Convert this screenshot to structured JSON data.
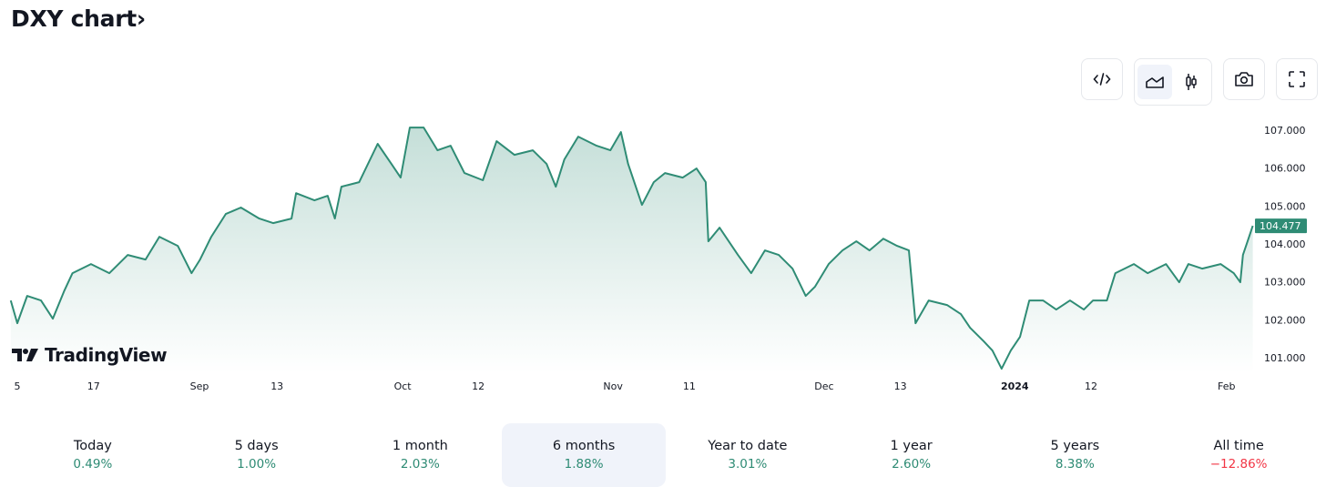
{
  "title": "DXY chart›",
  "toolbar": {
    "embed_icon": "code-icon",
    "area_icon": "area-chart-icon",
    "candles_icon": "candlestick-icon",
    "snapshot_icon": "camera-icon",
    "fullscreen_icon": "fullscreen-icon"
  },
  "logo": "TradingView",
  "colors": {
    "line": "#2f8c75",
    "up": "#2e8b74",
    "down": "#f23645",
    "badge": "#2f8c75"
  },
  "chart_data": {
    "type": "area",
    "title": "DXY",
    "xlabel": "",
    "ylabel": "",
    "ylim": [
      100.6,
      107.3
    ],
    "xlim": [
      -1,
      188
    ],
    "y_ticks": [
      "107.000",
      "106.000",
      "105.000",
      "104.000",
      "103.000",
      "102.000",
      "101.000"
    ],
    "y_tick_values": [
      107,
      106,
      105,
      104,
      103,
      102,
      101
    ],
    "x_ticks": [
      {
        "label": "5",
        "day": 0
      },
      {
        "label": "17",
        "day": 11.6
      },
      {
        "label": "Sep",
        "day": 27.7
      },
      {
        "label": "13",
        "day": 39.5
      },
      {
        "label": "Oct",
        "day": 58.6
      },
      {
        "label": "12",
        "day": 70.1
      },
      {
        "label": "Nov",
        "day": 90.6
      },
      {
        "label": "11",
        "day": 102.2
      },
      {
        "label": "Dec",
        "day": 122.7
      },
      {
        "label": "13",
        "day": 134.3
      },
      {
        "label": "2024",
        "day": 151.7
      },
      {
        "label": "12",
        "day": 163.3
      },
      {
        "label": "Feb",
        "day": 183.9
      }
    ],
    "last_value": "104.477",
    "series": [
      {
        "name": "DXY",
        "points": [
          [
            -1,
            102.51
          ],
          [
            0,
            101.91
          ],
          [
            1.5,
            102.63
          ],
          [
            3.6,
            102.51
          ],
          [
            5.4,
            102.03
          ],
          [
            7.1,
            102.75
          ],
          [
            8.4,
            103.23
          ],
          [
            11.2,
            103.47
          ],
          [
            14,
            103.23
          ],
          [
            16.8,
            103.71
          ],
          [
            19.5,
            103.59
          ],
          [
            21.6,
            104.19
          ],
          [
            24.4,
            103.95
          ],
          [
            26.5,
            103.23
          ],
          [
            27.8,
            103.59
          ],
          [
            29.5,
            104.19
          ],
          [
            31.7,
            104.79
          ],
          [
            34,
            104.96
          ],
          [
            36.8,
            104.67
          ],
          [
            38.9,
            104.55
          ],
          [
            41.7,
            104.67
          ],
          [
            42.4,
            105.34
          ],
          [
            45.2,
            105.15
          ],
          [
            47.2,
            105.27
          ],
          [
            48.3,
            104.67
          ],
          [
            49.3,
            105.51
          ],
          [
            52,
            105.63
          ],
          [
            54.8,
            106.64
          ],
          [
            56.9,
            106.11
          ],
          [
            58.3,
            105.75
          ],
          [
            59.7,
            107.07
          ],
          [
            61.8,
            107.07
          ],
          [
            63.9,
            106.47
          ],
          [
            65.9,
            106.59
          ],
          [
            68,
            105.87
          ],
          [
            70.8,
            105.68
          ],
          [
            72.9,
            106.71
          ],
          [
            75.6,
            106.35
          ],
          [
            78.4,
            106.47
          ],
          [
            80.5,
            106.11
          ],
          [
            81.9,
            105.51
          ],
          [
            83.2,
            106.23
          ],
          [
            85.3,
            106.83
          ],
          [
            88.1,
            106.59
          ],
          [
            90.2,
            106.47
          ],
          [
            91.8,
            106.95
          ],
          [
            92.9,
            106.11
          ],
          [
            95,
            105.03
          ],
          [
            96.8,
            105.63
          ],
          [
            98.5,
            105.87
          ],
          [
            101.2,
            105.75
          ],
          [
            103.3,
            105.99
          ],
          [
            104.7,
            105.63
          ],
          [
            105.1,
            104.07
          ],
          [
            106.8,
            104.43
          ],
          [
            109.6,
            103.71
          ],
          [
            111.6,
            103.23
          ],
          [
            113.7,
            103.83
          ],
          [
            115.8,
            103.71
          ],
          [
            117.9,
            103.35
          ],
          [
            119.9,
            102.63
          ],
          [
            121.3,
            102.87
          ],
          [
            123.4,
            103.47
          ],
          [
            125.5,
            103.83
          ],
          [
            127.6,
            104.07
          ],
          [
            129.6,
            103.83
          ],
          [
            131.7,
            104.14
          ],
          [
            133.8,
            103.95
          ],
          [
            135.6,
            103.83
          ],
          [
            136.6,
            101.91
          ],
          [
            138.6,
            102.51
          ],
          [
            141.4,
            102.39
          ],
          [
            143.5,
            102.15
          ],
          [
            144.9,
            101.79
          ],
          [
            147,
            101.43
          ],
          [
            148.3,
            101.19
          ],
          [
            149.7,
            100.71
          ],
          [
            151.1,
            101.19
          ],
          [
            152.5,
            101.55
          ],
          [
            153.9,
            102.51
          ],
          [
            156,
            102.51
          ],
          [
            158,
            102.27
          ],
          [
            160.1,
            102.51
          ],
          [
            162.2,
            102.27
          ],
          [
            163.6,
            102.51
          ],
          [
            165.7,
            102.51
          ],
          [
            167,
            103.23
          ],
          [
            169.8,
            103.47
          ],
          [
            171.9,
            103.23
          ],
          [
            174.7,
            103.47
          ],
          [
            176.7,
            102.99
          ],
          [
            178.1,
            103.47
          ],
          [
            180.2,
            103.35
          ],
          [
            183,
            103.47
          ],
          [
            185,
            103.23
          ],
          [
            186,
            102.99
          ],
          [
            186.4,
            103.71
          ],
          [
            187.1,
            104.07
          ],
          [
            187.9,
            104.477
          ]
        ]
      }
    ]
  },
  "periods": [
    {
      "label": "Today",
      "value": "0.49%",
      "dir": "up"
    },
    {
      "label": "5 days",
      "value": "1.00%",
      "dir": "up"
    },
    {
      "label": "1 month",
      "value": "2.03%",
      "dir": "up"
    },
    {
      "label": "6 months",
      "value": "1.88%",
      "dir": "up",
      "active": true
    },
    {
      "label": "Year to date",
      "value": "3.01%",
      "dir": "up"
    },
    {
      "label": "1 year",
      "value": "2.60%",
      "dir": "up"
    },
    {
      "label": "5 years",
      "value": "8.38%",
      "dir": "up"
    },
    {
      "label": "All time",
      "value": "−12.86%",
      "dir": "down"
    }
  ]
}
